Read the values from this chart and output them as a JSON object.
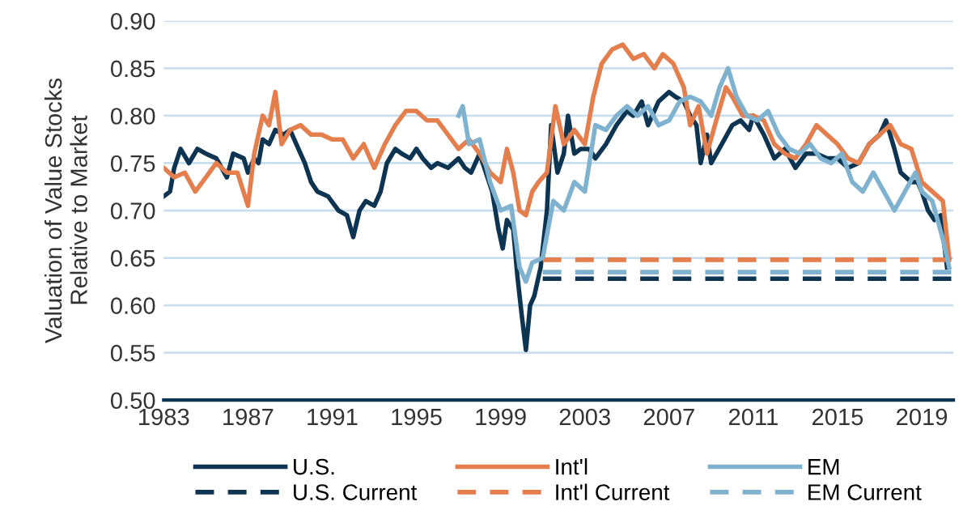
{
  "chart_data": {
    "type": "line",
    "ylabel": "Valuation of Value Stocks\nRelative to Market",
    "xlim": [
      1983,
      2020.5
    ],
    "xticks": [
      1983,
      1987,
      1991,
      1995,
      1999,
      2003,
      2007,
      2011,
      2015,
      2019
    ],
    "ylim": [
      0.5,
      0.9
    ],
    "yticks": [
      {
        "value": 0.5,
        "label": "0.50"
      },
      {
        "value": 0.55,
        "label": "0.55"
      },
      {
        "value": 0.6,
        "label": "0.60"
      },
      {
        "value": 0.65,
        "label": "0.65"
      },
      {
        "value": 0.7,
        "label": "0.70"
      },
      {
        "value": 0.75,
        "label": "0.75"
      },
      {
        "value": 0.8,
        "label": "0.80"
      },
      {
        "value": 0.85,
        "label": "0.85"
      },
      {
        "value": 0.9,
        "label": "0.90"
      }
    ],
    "grid": "y",
    "legend": "bottom",
    "line_style": "solid",
    "series": [
      {
        "name": "U.S.",
        "color": "#0d3552",
        "x": [
          1983.0,
          1983.3,
          1983.5,
          1983.8,
          1984.2,
          1984.6,
          1985.0,
          1985.5,
          1986.0,
          1986.3,
          1986.8,
          1987.0,
          1987.3,
          1987.5,
          1987.7,
          1988.0,
          1988.3,
          1988.7,
          1989.0,
          1989.3,
          1989.7,
          1990.0,
          1990.3,
          1990.8,
          1991.3,
          1991.7,
          1992.0,
          1992.3,
          1992.6,
          1993.0,
          1993.3,
          1993.6,
          1994.0,
          1994.3,
          1994.7,
          1995.0,
          1995.3,
          1995.7,
          1996.0,
          1996.5,
          1997.0,
          1997.3,
          1997.6,
          1998.0,
          1998.3,
          1998.6,
          1998.9,
          1999.1,
          1999.3,
          1999.6,
          1999.8,
          2000.0,
          2000.2,
          2000.4,
          2000.6,
          2000.9,
          2001.2,
          2001.4,
          2001.7,
          2002.0,
          2002.2,
          2002.5,
          2002.8,
          2003.2,
          2003.5,
          2004.0,
          2004.5,
          2005.0,
          2005.3,
          2005.7,
          2006.0,
          2006.5,
          2007.0,
          2007.3,
          2007.7,
          2008.0,
          2008.3,
          2008.5,
          2008.8,
          2009.0,
          2009.5,
          2010.0,
          2010.4,
          2010.8,
          2011.0,
          2011.5,
          2012.0,
          2012.5,
          2013.0,
          2013.5,
          2014.0,
          2014.5,
          2015.0,
          2015.5,
          2016.0,
          2016.5,
          2017.0,
          2017.3,
          2017.7,
          2018.0,
          2018.5,
          2018.8,
          2019.0,
          2019.3,
          2019.6,
          2019.9,
          2020.2
        ],
        "values": [
          0.715,
          0.72,
          0.745,
          0.765,
          0.75,
          0.765,
          0.76,
          0.755,
          0.735,
          0.76,
          0.755,
          0.74,
          0.755,
          0.75,
          0.775,
          0.77,
          0.785,
          0.78,
          0.785,
          0.77,
          0.75,
          0.73,
          0.72,
          0.715,
          0.7,
          0.695,
          0.672,
          0.7,
          0.71,
          0.705,
          0.72,
          0.75,
          0.765,
          0.76,
          0.755,
          0.765,
          0.755,
          0.745,
          0.75,
          0.745,
          0.755,
          0.745,
          0.74,
          0.76,
          0.74,
          0.72,
          0.68,
          0.66,
          0.69,
          0.68,
          0.63,
          0.59,
          0.553,
          0.6,
          0.61,
          0.64,
          0.7,
          0.79,
          0.74,
          0.76,
          0.8,
          0.76,
          0.765,
          0.765,
          0.755,
          0.77,
          0.79,
          0.805,
          0.8,
          0.815,
          0.79,
          0.815,
          0.825,
          0.82,
          0.815,
          0.8,
          0.79,
          0.75,
          0.78,
          0.75,
          0.77,
          0.79,
          0.795,
          0.785,
          0.8,
          0.78,
          0.755,
          0.765,
          0.745,
          0.76,
          0.76,
          0.755,
          0.755,
          0.745,
          0.75,
          0.77,
          0.78,
          0.795,
          0.765,
          0.74,
          0.73,
          0.73,
          0.72,
          0.7,
          0.69,
          0.695,
          0.64
        ]
      },
      {
        "name": "U.S. Current",
        "color": "#0d3552",
        "line_style": "dashed",
        "x": [
          2001.0,
          2020.4
        ],
        "values": [
          0.628,
          0.628
        ]
      },
      {
        "name": "Int'l",
        "color": "#e57e4d",
        "x": [
          1983.0,
          1983.5,
          1984.0,
          1984.5,
          1985.0,
          1985.5,
          1986.0,
          1986.5,
          1987.0,
          1987.3,
          1987.7,
          1988.0,
          1988.3,
          1988.6,
          1989.0,
          1989.5,
          1990.0,
          1990.5,
          1991.0,
          1991.5,
          1992.0,
          1992.5,
          1993.0,
          1993.5,
          1994.0,
          1994.5,
          1995.0,
          1995.5,
          1996.0,
          1996.5,
          1997.0,
          1997.5,
          1998.0,
          1998.5,
          1999.0,
          1999.3,
          1999.6,
          1999.9,
          2000.2,
          2000.5,
          2000.8,
          2001.2,
          2001.6,
          2002.0,
          2002.5,
          2003.0,
          2003.4,
          2003.8,
          2004.3,
          2004.8,
          2005.3,
          2005.8,
          2006.3,
          2006.7,
          2007.2,
          2007.7,
          2008.0,
          2008.4,
          2008.8,
          2009.3,
          2009.7,
          2010.0,
          2010.5,
          2011.0,
          2011.5,
          2012.0,
          2012.5,
          2013.0,
          2013.5,
          2014.0,
          2014.5,
          2015.0,
          2015.5,
          2016.0,
          2016.5,
          2017.0,
          2017.5,
          2018.0,
          2018.5,
          2019.0,
          2019.5,
          2020.0,
          2020.3
        ],
        "values": [
          0.745,
          0.735,
          0.74,
          0.72,
          0.735,
          0.75,
          0.74,
          0.74,
          0.705,
          0.76,
          0.8,
          0.79,
          0.825,
          0.77,
          0.785,
          0.79,
          0.78,
          0.78,
          0.775,
          0.775,
          0.755,
          0.77,
          0.745,
          0.77,
          0.79,
          0.805,
          0.805,
          0.795,
          0.795,
          0.78,
          0.765,
          0.775,
          0.76,
          0.74,
          0.73,
          0.765,
          0.74,
          0.7,
          0.695,
          0.72,
          0.73,
          0.74,
          0.81,
          0.77,
          0.785,
          0.77,
          0.82,
          0.855,
          0.87,
          0.875,
          0.86,
          0.865,
          0.85,
          0.865,
          0.855,
          0.83,
          0.79,
          0.81,
          0.76,
          0.8,
          0.83,
          0.82,
          0.8,
          0.8,
          0.795,
          0.77,
          0.76,
          0.755,
          0.77,
          0.79,
          0.78,
          0.77,
          0.755,
          0.75,
          0.77,
          0.78,
          0.79,
          0.77,
          0.765,
          0.73,
          0.72,
          0.71,
          0.65
        ]
      },
      {
        "name": "Int'l Current",
        "color": "#e57e4d",
        "line_style": "dashed",
        "x": [
          2001.0,
          2020.4
        ],
        "values": [
          0.648,
          0.648
        ]
      },
      {
        "name": "EM",
        "color": "#7fb2cf",
        "x": [
          1997.0,
          1997.2,
          1997.5,
          1998.0,
          1998.5,
          1999.0,
          1999.5,
          1999.9,
          2000.2,
          2000.5,
          2001.0,
          2001.5,
          2002.0,
          2002.5,
          2003.0,
          2003.5,
          2004.0,
          2004.5,
          2005.0,
          2005.5,
          2006.0,
          2006.5,
          2007.0,
          2007.5,
          2008.0,
          2008.5,
          2009.0,
          2009.4,
          2009.8,
          2010.2,
          2010.7,
          2011.2,
          2011.7,
          2012.2,
          2012.7,
          2013.2,
          2013.7,
          2014.2,
          2014.7,
          2015.2,
          2015.7,
          2016.2,
          2016.7,
          2017.2,
          2017.7,
          2018.2,
          2018.7,
          2019.0,
          2019.5,
          2020.0,
          2020.3
        ],
        "values": [
          0.8,
          0.81,
          0.77,
          0.775,
          0.73,
          0.7,
          0.705,
          0.64,
          0.625,
          0.645,
          0.65,
          0.71,
          0.7,
          0.73,
          0.72,
          0.79,
          0.785,
          0.8,
          0.81,
          0.8,
          0.81,
          0.79,
          0.795,
          0.815,
          0.82,
          0.815,
          0.8,
          0.83,
          0.85,
          0.82,
          0.8,
          0.795,
          0.805,
          0.78,
          0.765,
          0.76,
          0.77,
          0.755,
          0.75,
          0.76,
          0.73,
          0.72,
          0.74,
          0.72,
          0.7,
          0.72,
          0.74,
          0.72,
          0.71,
          0.67,
          0.64
        ]
      },
      {
        "name": "EM Current",
        "color": "#7fb2cf",
        "line_style": "dashed",
        "x": [
          2001.0,
          2020.4
        ],
        "values": [
          0.635,
          0.635
        ]
      }
    ]
  }
}
